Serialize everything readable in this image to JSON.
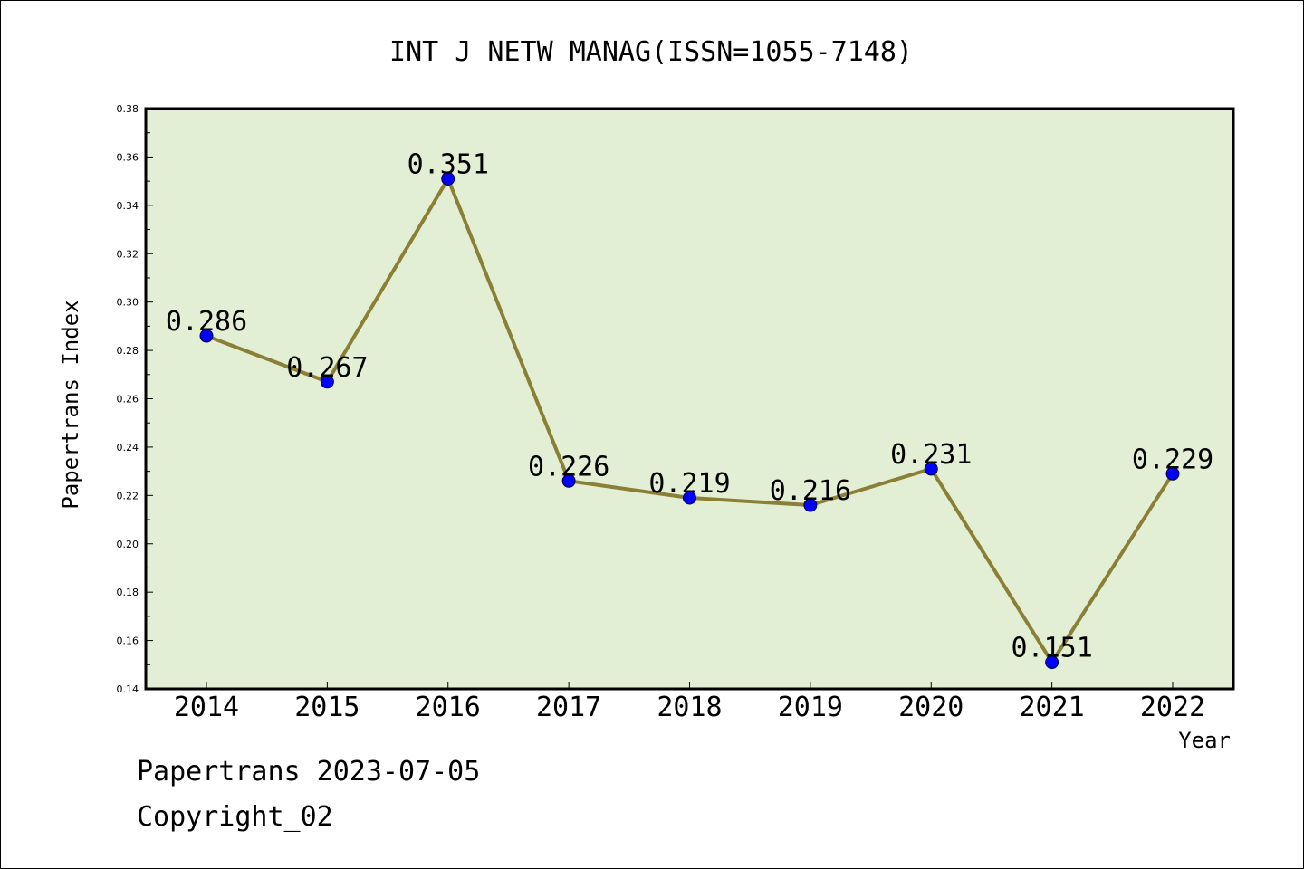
{
  "footer": {
    "line1": "Papertrans 2023-07-05",
    "line2": "Copyright_02"
  },
  "colors": {
    "plot_bg": "#e2efd4",
    "line": "#8b7f36",
    "marker": "#0000ff",
    "axis": "#000000"
  },
  "chart_data": {
    "type": "line",
    "title": "INT J NETW MANAG(ISSN=1055-7148)",
    "xlabel": "Year",
    "ylabel": "Papertrans Index",
    "categories": [
      "2014",
      "2015",
      "2016",
      "2017",
      "2018",
      "2019",
      "2020",
      "2021",
      "2022"
    ],
    "series": [
      {
        "values": [
          0.286,
          0.267,
          0.351,
          0.226,
          0.219,
          0.216,
          0.231,
          0.151,
          0.229
        ],
        "data_labels": [
          "0.286",
          "0.267",
          "0.351",
          "0.226",
          "0.219",
          "0.216",
          "0.231",
          "0.151",
          "0.229"
        ]
      }
    ],
    "ylim": [
      0.14,
      0.38
    ],
    "yticks": [
      "0.14",
      "0.16",
      "0.18",
      "0.20",
      "0.22",
      "0.24",
      "0.26",
      "0.28",
      "0.30",
      "0.32",
      "0.34",
      "0.36",
      "0.38"
    ],
    "grid": false,
    "legend": "none"
  }
}
